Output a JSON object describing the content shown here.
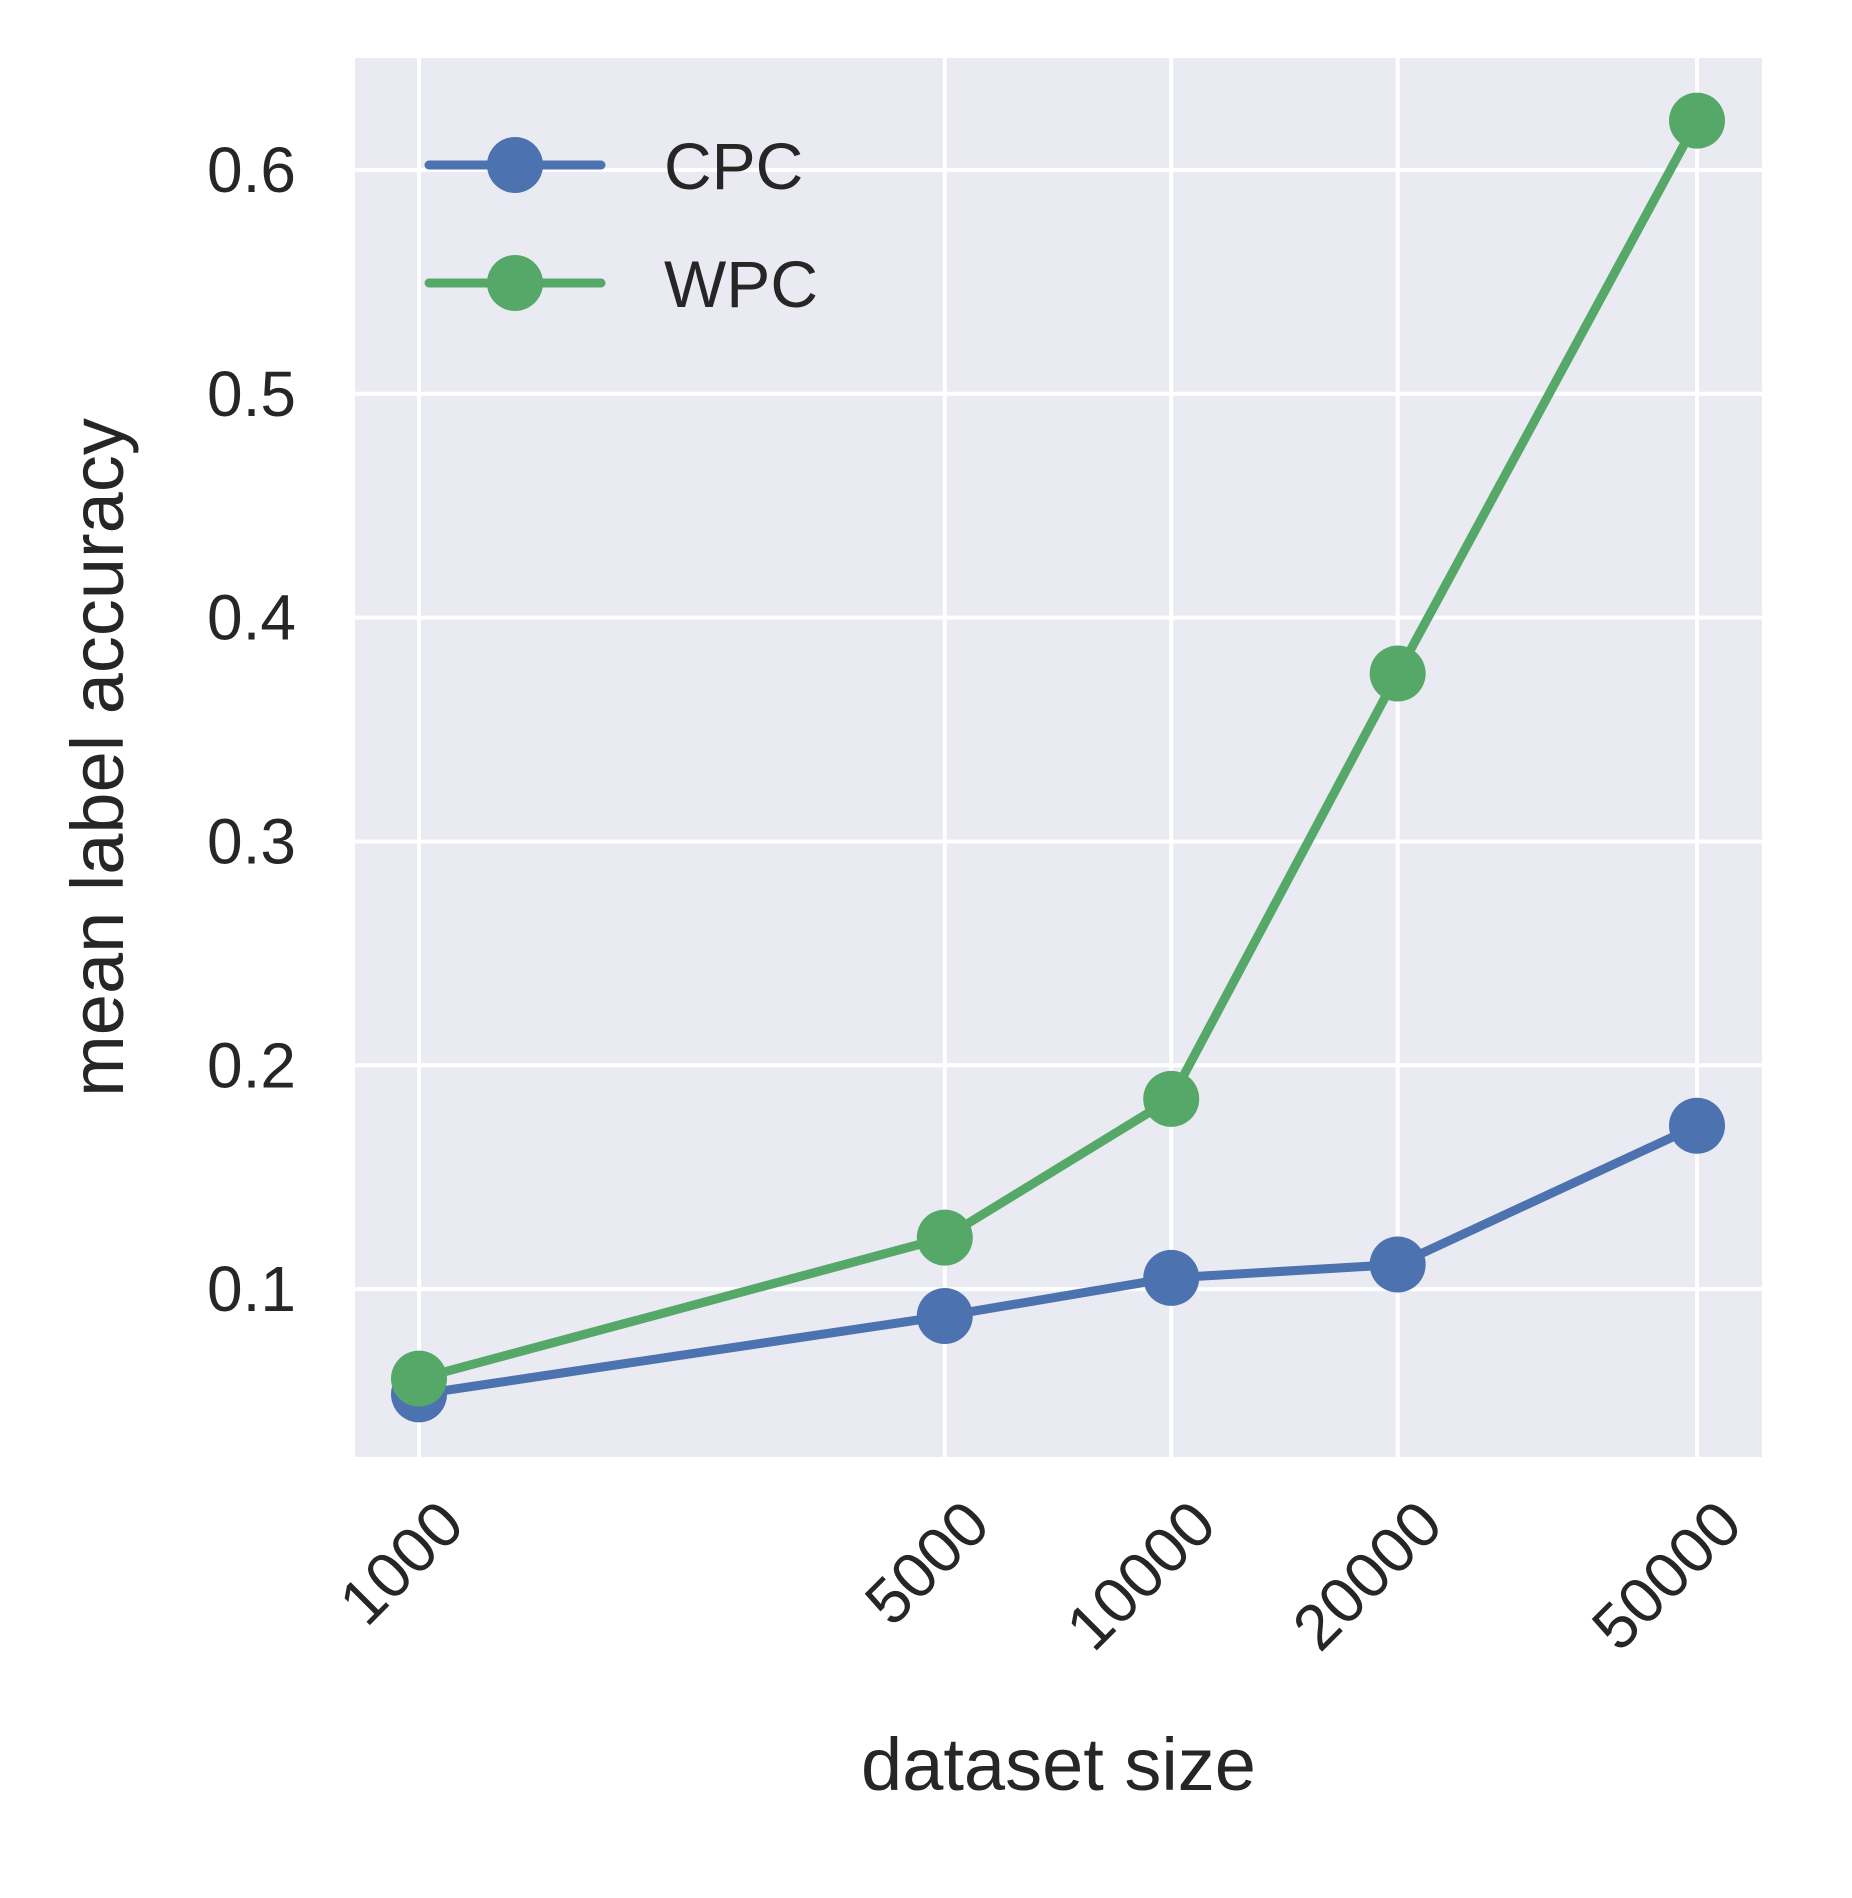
{
  "chart_data": {
    "type": "line",
    "xscale": "log",
    "x": [
      1000,
      5000,
      10000,
      20000,
      50000
    ],
    "xticks": [
      "1000",
      "5000",
      "10000",
      "20000",
      "50000"
    ],
    "xlabel": "dataset size",
    "ylabel": "mean label accuracy",
    "ylim": [
      0.025,
      0.65
    ],
    "yticks": [
      0.1,
      0.2,
      0.3,
      0.4,
      0.5,
      0.6
    ],
    "ytick_labels": [
      "0.1",
      "0.2",
      "0.3",
      "0.4",
      "0.5",
      "0.6"
    ],
    "grid": true,
    "legend_position": "top-left",
    "series": [
      {
        "name": "CPC",
        "color": "#4c72b0",
        "values": [
          0.053,
          0.088,
          0.105,
          0.111,
          0.173
        ]
      },
      {
        "name": "WPC",
        "color": "#55a868",
        "values": [
          0.06,
          0.123,
          0.185,
          0.375,
          0.622
        ]
      }
    ],
    "background": "#eaeaf2",
    "gridcolor": "#ffffff"
  }
}
